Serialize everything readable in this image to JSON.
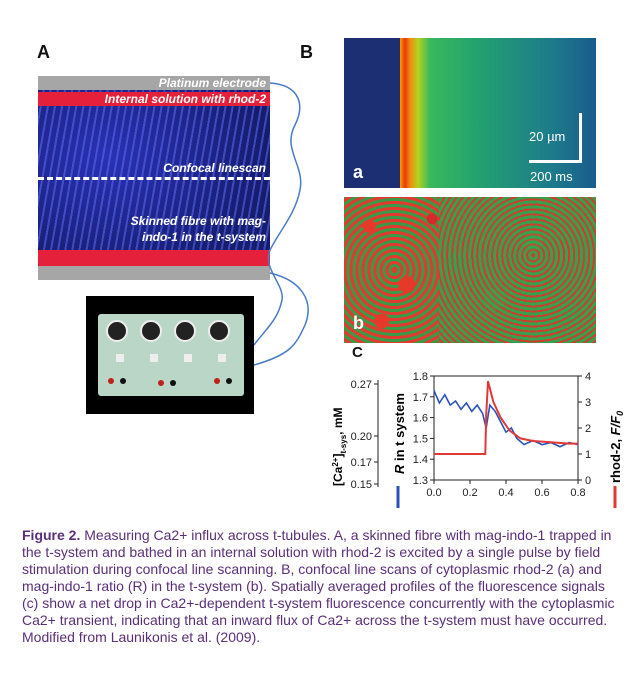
{
  "panels": {
    "a_label": "A",
    "b_label": "B",
    "c_label": "C"
  },
  "panel_a": {
    "platinum_electrode": "Platinum electrode",
    "internal_solution": "Internal solution with rhod-2",
    "confocal_linescan": "Confocal linescan",
    "fibre_line1": "Skinned fibre with mag-",
    "fibre_line2": "indo-1 in the t-system"
  },
  "panel_b": {
    "scale_um": "20 µm",
    "scale_ms": "200 ms",
    "image_a_letter": "a",
    "image_b_letter": "b"
  },
  "colors": {
    "ratio_trace": "#2a52b8",
    "rhod_trace": "#e03a36",
    "caption_text": "#5a2f78",
    "rhod_band": "#e5203a"
  },
  "chart_data": {
    "type": "line",
    "xlabel": "",
    "x_ticks": [
      "0.0",
      "0.2",
      "0.4",
      "0.6",
      "0.8"
    ],
    "xlim": [
      0,
      0.8
    ],
    "y_left_outer_label": "[Ca2+]t-sys, mM",
    "y_left_outer_ticks": [
      "0.27",
      "0.20",
      "0.17",
      "0.15"
    ],
    "y_left_inner_label": "R in t system",
    "y_left_inner_ticks": [
      "1.8",
      "1.7",
      "1.6",
      "1.5",
      "1.4",
      "1.3"
    ],
    "ylim_left": [
      1.3,
      1.8
    ],
    "y_right_label": "rhod-2, F/F0",
    "y_right_ticks": [
      "4",
      "3",
      "2",
      "1",
      "0"
    ],
    "ylim_right": [
      0,
      4
    ],
    "series": [
      {
        "name": "R in t system",
        "axis": "left",
        "x": [
          0.0,
          0.03,
          0.06,
          0.09,
          0.12,
          0.15,
          0.18,
          0.21,
          0.24,
          0.27,
          0.29,
          0.31,
          0.34,
          0.37,
          0.4,
          0.43,
          0.46,
          0.5,
          0.55,
          0.6,
          0.65,
          0.7,
          0.75,
          0.8
        ],
        "y": [
          1.73,
          1.67,
          1.71,
          1.66,
          1.68,
          1.64,
          1.67,
          1.63,
          1.66,
          1.62,
          1.55,
          1.66,
          1.63,
          1.58,
          1.53,
          1.55,
          1.5,
          1.47,
          1.49,
          1.47,
          1.48,
          1.46,
          1.48,
          1.47
        ]
      },
      {
        "name": "rhod-2, F/F0",
        "axis": "right",
        "x": [
          0.0,
          0.1,
          0.2,
          0.285,
          0.29,
          0.3,
          0.33,
          0.37,
          0.42,
          0.48,
          0.55,
          0.65,
          0.75,
          0.8
        ],
        "y": [
          1.0,
          1.0,
          1.0,
          1.0,
          2.5,
          3.8,
          3.0,
          2.4,
          1.9,
          1.6,
          1.5,
          1.45,
          1.4,
          1.4
        ]
      }
    ]
  },
  "caption": {
    "figure_label": "Figure 2.",
    "text": "Measuring Ca2+ influx across t-tubules. A, a skinned fibre with mag-indo-1 trapped in the t-system and bathed in an internal solution with rhod-2 is excited by a single pulse by field stimulation during confocal line scanning. B, confocal line scans of cytoplasmic rhod-2 (a) and mag-indo-1 ratio (R) in the t-system (b). Spatially averaged profiles of the fluorescence signals (c) show a net drop in Ca2+-dependent t-system fluorescence concurrently with the cytoplasmic Ca2+ transient, indicating that an inward flux of Ca2+ across the t-system must have occurred. Modified from Launikonis et al. (2009)."
  }
}
